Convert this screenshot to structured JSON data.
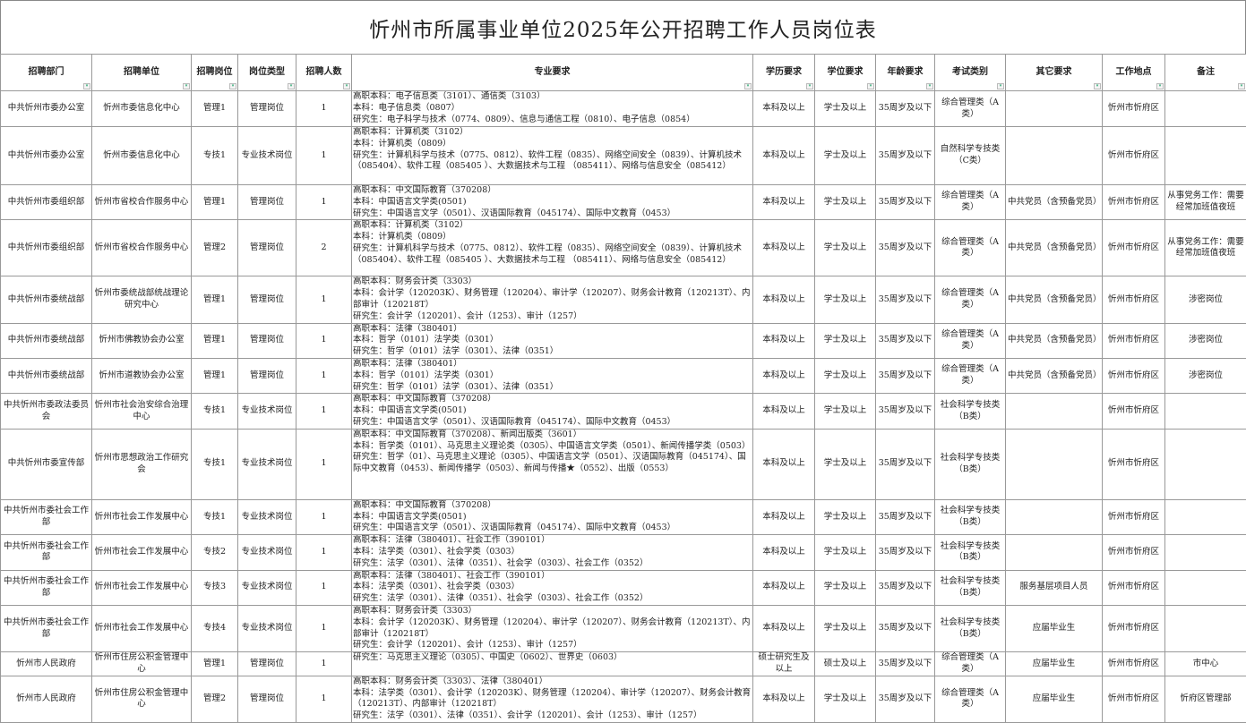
{
  "title": "忻州市所属事业单位2025年公开招聘工作人员岗位表",
  "headers": [
    "招聘部门",
    "招聘单位",
    "招聘岗位",
    "岗位类型",
    "招聘人数",
    "专业要求",
    "学历要求",
    "学位要求",
    "年龄要求",
    "考试类别",
    "其它要求",
    "工作地点",
    "备注"
  ],
  "rows": [
    {
      "dept": "中共忻州市委办公室",
      "unit": "忻州市委信息化中心",
      "post": "管理1",
      "type": "管理岗位",
      "count": "1",
      "major": [
        "高职本科：电子信息类（3101）、通信类（3103）",
        "本科：电子信息类（0807）",
        "研究生：电子科学与技术（0774、0809）、信息与通信工程（0810）、电子信息（0854）"
      ],
      "edu": "本科及以上",
      "degree": "学士及以上",
      "age": "35周岁及以下",
      "exam": "综合管理类（A类）",
      "other": "",
      "place": "忻州市忻府区",
      "note": ""
    },
    {
      "dept": "中共忻州市委办公室",
      "unit": "忻州市委信息化中心",
      "post": "专技1",
      "type": "专业技术岗位",
      "count": "1",
      "major": [
        "高职本科：计算机类（3102）",
        "本科：计算机类（0809）",
        "研究生：计算机科学与技术（0775、0812）、软件工程（0835）、网络空间安全（0839）、计算机技术（085404）、软件工程（085405 ）、大数据技术与工程 （085411）、网络与信息安全（085412）"
      ],
      "edu": "本科及以上",
      "degree": "学士及以上",
      "age": "35周岁及以下",
      "exam": "自然科学专技类（C类）",
      "other": "",
      "place": "忻州市忻府区",
      "note": ""
    },
    {
      "dept": "中共忻州市委组织部",
      "unit": "忻州市省校合作服务中心",
      "post": "管理1",
      "type": "管理岗位",
      "count": "1",
      "major": [
        "高职本科：中文国际教育（370208）",
        "本科：中国语言文学类(0501)",
        "研究生：中国语言文学（0501）、汉语国际教育（045174）、国际中文教育（0453）"
      ],
      "edu": "本科及以上",
      "degree": "学士及以上",
      "age": "35周岁及以下",
      "exam": "综合管理类（A类）",
      "other": "中共党员（含预备党员）",
      "place": "忻州市忻府区",
      "note": "从事党务工作：需要经常加班值夜班"
    },
    {
      "dept": "中共忻州市委组织部",
      "unit": "忻州市省校合作服务中心",
      "post": "管理2",
      "type": "管理岗位",
      "count": "2",
      "major": [
        "高职本科：计算机类（3102）",
        "本科：计算机类（0809）",
        "研究生：计算机科学与技术（0775、0812）、软件工程（0835）、网络空间安全（0839）、计算机技术（085404）、软件工程（085405 ）、大数据技术与工程 （085411）、网络与信息安全（085412）"
      ],
      "edu": "本科及以上",
      "degree": "学士及以上",
      "age": "35周岁及以下",
      "exam": "综合管理类（A类）",
      "other": "中共党员（含预备党员）",
      "place": "忻州市忻府区",
      "note": "从事党务工作：需要经常加班值夜班"
    },
    {
      "dept": "中共忻州市委统战部",
      "unit": "忻州市委统战部统战理论研究中心",
      "post": "管理1",
      "type": "管理岗位",
      "count": "1",
      "major": [
        "高职本科：财务会计类（3303）",
        "本科：会计学（120203K）、财务管理（120204）、审计学（120207）、财务会计教育（120213T）、内部审计（120218T）",
        "研究生：会计学（120201）、会计（1253）、审计（1257）"
      ],
      "edu": "本科及以上",
      "degree": "学士及以上",
      "age": "35周岁及以下",
      "exam": "综合管理类（A类）",
      "other": "中共党员（含预备党员）",
      "place": "忻州市忻府区",
      "note": "涉密岗位"
    },
    {
      "dept": "中共忻州市委统战部",
      "unit": "忻州市佛教协会办公室",
      "post": "管理1",
      "type": "管理岗位",
      "count": "1",
      "major": [
        "高职本科：法律（380401）",
        "本科：哲学（0101）法学类（0301）",
        "研究生：哲学（0101）法学（0301）、法律（0351）"
      ],
      "edu": "本科及以上",
      "degree": "学士及以上",
      "age": "35周岁及以下",
      "exam": "综合管理类（A类）",
      "other": "中共党员（含预备党员）",
      "place": "忻州市忻府区",
      "note": "涉密岗位"
    },
    {
      "dept": "中共忻州市委统战部",
      "unit": "忻州市道教协会办公室",
      "post": "管理1",
      "type": "管理岗位",
      "count": "1",
      "major": [
        "高职本科：法律（380401）",
        "本科：哲学（0101）法学类（0301）",
        "研究生：哲学（0101）法学（0301）、法律（0351）"
      ],
      "edu": "本科及以上",
      "degree": "学士及以上",
      "age": "35周岁及以下",
      "exam": "综合管理类（A类）",
      "other": "中共党员（含预备党员）",
      "place": "忻州市忻府区",
      "note": "涉密岗位"
    },
    {
      "dept": "中共忻州市委政法委员会",
      "unit": "忻州市社会治安综合治理中心",
      "post": "专技1",
      "type": "专业技术岗位",
      "count": "1",
      "major": [
        "高职本科：中文国际教育（370208）",
        "本科：中国语言文学类(0501)",
        "研究生：中国语言文学（0501）、汉语国际教育（045174）、国际中文教育（0453）"
      ],
      "edu": "本科及以上",
      "degree": "学士及以上",
      "age": "35周岁及以下",
      "exam": "社会科学专技类（B类）",
      "other": "",
      "place": "忻州市忻府区",
      "note": ""
    },
    {
      "dept": "中共忻州市委宣传部",
      "unit": "忻州市思想政治工作研究会",
      "post": "专技1",
      "type": "专业技术岗位",
      "count": "1",
      "major": [
        "高职本科：中文国际教育（370208）、新闻出版类（3601）",
        "本科：哲学类（0101）、马克思主义理论类（0305）、中国语言文学类（0501）、新闻传播学类（0503）",
        "研究生：哲学（01）、马克思主义理论（0305）、中国语言文学（0501）、汉语国际教育（045174）、国际中文教育（0453）、新闻传播学（0503）、新闻与传播★（0552）、出版（0553）"
      ],
      "edu": "本科及以上",
      "degree": "学士及以上",
      "age": "35周岁及以下",
      "exam": "社会科学专技类（B类）",
      "other": "",
      "place": "忻州市忻府区",
      "note": ""
    },
    {
      "dept": "中共忻州市委社会工作部",
      "unit": "忻州市社会工作发展中心",
      "post": "专技1",
      "type": "专业技术岗位",
      "count": "1",
      "major": [
        "高职本科：中文国际教育（370208）",
        "本科：中国语言文学类(0501)",
        "研究生：中国语言文学（0501）、汉语国际教育（045174）、国际中文教育（0453）"
      ],
      "edu": "本科及以上",
      "degree": "学士及以上",
      "age": "35周岁及以下",
      "exam": "社会科学专技类（B类）",
      "other": "",
      "place": "忻州市忻府区",
      "note": ""
    },
    {
      "dept": "中共忻州市委社会工作部",
      "unit": "忻州市社会工作发展中心",
      "post": "专技2",
      "type": "专业技术岗位",
      "count": "1",
      "major": [
        "高职本科：法律（380401）、社会工作（390101）",
        "本科：法学类（0301）、社会学类（0303）",
        "研究生：法学（0301）、法律（0351）、社会学（0303）、社会工作（0352）"
      ],
      "edu": "本科及以上",
      "degree": "学士及以上",
      "age": "35周岁及以下",
      "exam": "社会科学专技类（B类）",
      "other": "",
      "place": "忻州市忻府区",
      "note": ""
    },
    {
      "dept": "中共忻州市委社会工作部",
      "unit": "忻州市社会工作发展中心",
      "post": "专技3",
      "type": "专业技术岗位",
      "count": "1",
      "major": [
        "高职本科：法律（380401）、社会工作（390101）",
        "本科：法学类（0301）、社会学类（0303）",
        "研究生：法学（0301）、法律（0351）、社会学（0303）、社会工作（0352）"
      ],
      "edu": "本科及以上",
      "degree": "学士及以上",
      "age": "35周岁及以下",
      "exam": "社会科学专技类（B类）",
      "other": "服务基层项目人员",
      "place": "忻州市忻府区",
      "note": ""
    },
    {
      "dept": "中共忻州市委社会工作部",
      "unit": "忻州市社会工作发展中心",
      "post": "专技4",
      "type": "专业技术岗位",
      "count": "1",
      "major": [
        "高职本科：财务会计类（3303）",
        "本科：会计学（120203K）、财务管理（120204）、审计学（120207）、财务会计教育（120213T）、内部审计（120218T）",
        "研究生：会计学（120201）、会计（1253）、审计（1257）"
      ],
      "edu": "本科及以上",
      "degree": "学士及以上",
      "age": "35周岁及以下",
      "exam": "社会科学专技类（B类）",
      "other": "应届毕业生",
      "place": "忻州市忻府区",
      "note": ""
    },
    {
      "dept": "忻州市人民政府",
      "unit": "忻州市住房公积金管理中心",
      "post": "管理1",
      "type": "管理岗位",
      "count": "1",
      "major": [
        "研究生：马克思主义理论（0305）、中国史（0602）、世界史（0603）"
      ],
      "edu": "硕士研究生及以上",
      "degree": "硕士及以上",
      "age": "35周岁及以下",
      "exam": "综合管理类（A类）",
      "other": "应届毕业生",
      "place": "忻州市忻府区",
      "note": "市中心"
    },
    {
      "dept": "忻州市人民政府",
      "unit": "忻州市住房公积金管理中心",
      "post": "管理2",
      "type": "管理岗位",
      "count": "1",
      "major": [
        "高职本科：财务会计类（3303）、法律（380401）",
        "本科：法学类（0301）、会计学（120203K）、财务管理（120204）、审计学（120207）、财务会计教育（120213T）、内部审计（120218T）",
        "研究生：法学（0301）、法律（0351）、会计学（120201）、会计（1253）、审计（1257）"
      ],
      "edu": "本科及以上",
      "degree": "学士及以上",
      "age": "35周岁及以下",
      "exam": "综合管理类（A类）",
      "other": "应届毕业生",
      "place": "忻州市忻府区",
      "note": "忻府区管理部"
    }
  ]
}
